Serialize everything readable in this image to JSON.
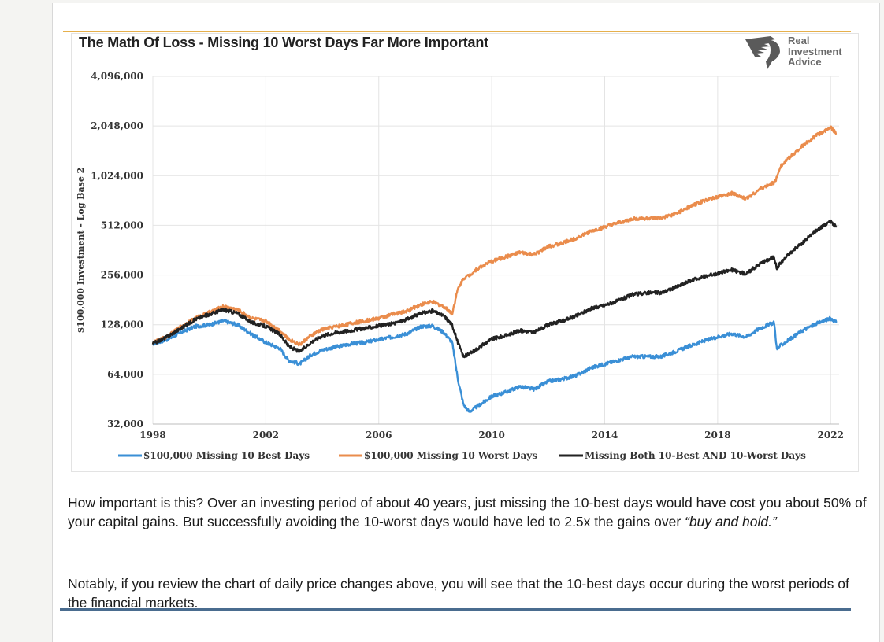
{
  "chart_title": "The Math Of Loss - Missing 10 Worst Days Far More Important",
  "logo": {
    "line1": "Real",
    "line2": "Investment",
    "line3": "Advice"
  },
  "paragraph1": {
    "text": "How important is this? Over an investing period of about 40 years, just missing the 10-best days would have cost you about 50% of your capital gains. But successfully avoiding the 10-worst days would have led to 2.5x the gains over ",
    "emphasis": "“buy and hold.”"
  },
  "paragraph2": "Notably, if you review the chart of daily price changes above, you will see that the 10-best days occur during the worst periods of the financial markets.",
  "colors": {
    "best": "#3a8fd6",
    "worst": "#ea8c4c",
    "both": "#222222",
    "accent_rule": "#e6b04c",
    "bottom_rule": "#4a6c8f"
  },
  "chart_data": {
    "type": "line",
    "title": "The Math Of Loss - Missing 10 Worst Days Far More Important",
    "xlabel": "",
    "ylabel": "$100,000 Investment - Log Base 2",
    "y_scale": "log2",
    "ylim": [
      32000,
      4096000
    ],
    "xlim": [
      1998,
      2022.3
    ],
    "y_ticks": [
      32000,
      64000,
      128000,
      256000,
      512000,
      1024000,
      2048000,
      4096000
    ],
    "y_tick_labels": [
      "32,000",
      "64,000",
      "128,000",
      "256,000",
      "512,000",
      "1,024,000",
      "2,048,000",
      "4,096,000"
    ],
    "x_ticks": [
      1998,
      2002,
      2006,
      2010,
      2014,
      2018,
      2022
    ],
    "x_tick_labels": [
      "1998",
      "2002",
      "2006",
      "2010",
      "2014",
      "2018",
      "2022"
    ],
    "grid": true,
    "legend_position": "bottom",
    "series": [
      {
        "name": "$100,000 Missing 10 Best Days",
        "color": "#3a8fd6",
        "x": [
          1998.0,
          1998.5,
          1999.0,
          1999.5,
          2000.0,
          2000.5,
          2001.0,
          2001.5,
          2002.0,
          2002.5,
          2002.8,
          2003.2,
          2003.6,
          2004.0,
          2004.5,
          2005.0,
          2005.5,
          2006.0,
          2006.5,
          2007.0,
          2007.5,
          2007.9,
          2008.3,
          2008.6,
          2008.8,
          2009.0,
          2009.2,
          2009.5,
          2010.0,
          2010.5,
          2011.0,
          2011.5,
          2012.0,
          2012.5,
          2013.0,
          2013.5,
          2014.0,
          2014.5,
          2015.0,
          2015.5,
          2016.0,
          2016.5,
          2017.0,
          2017.5,
          2018.0,
          2018.5,
          2019.0,
          2019.5,
          2020.0,
          2020.1,
          2020.2,
          2020.5,
          2021.0,
          2021.5,
          2022.0,
          2022.2
        ],
        "y": [
          98000,
          104000,
          115000,
          125000,
          128000,
          135000,
          128000,
          112000,
          100000,
          92000,
          78000,
          74000,
          84000,
          90000,
          94000,
          98000,
          100000,
          104000,
          108000,
          113000,
          125000,
          126000,
          115000,
          100000,
          60000,
          42000,
          38000,
          41000,
          47000,
          50000,
          54000,
          52000,
          58000,
          60000,
          63000,
          70000,
          74000,
          78000,
          82000,
          82000,
          82000,
          88000,
          95000,
          102000,
          108000,
          113000,
          108000,
          122000,
          132000,
          90000,
          95000,
          103000,
          118000,
          130000,
          140000,
          132000
        ]
      },
      {
        "name": "$100,000 Missing 10 Worst Days",
        "color": "#ea8c4c",
        "x": [
          1998.0,
          1998.5,
          1999.0,
          1999.5,
          2000.0,
          2000.5,
          2001.0,
          2001.5,
          2002.0,
          2002.5,
          2002.8,
          2003.2,
          2003.6,
          2004.0,
          2004.5,
          2005.0,
          2005.5,
          2006.0,
          2006.5,
          2007.0,
          2007.5,
          2007.9,
          2008.3,
          2008.6,
          2008.8,
          2009.0,
          2009.2,
          2009.5,
          2010.0,
          2010.5,
          2011.0,
          2011.5,
          2012.0,
          2012.5,
          2013.0,
          2013.5,
          2014.0,
          2014.5,
          2015.0,
          2015.5,
          2016.0,
          2016.5,
          2017.0,
          2017.5,
          2018.0,
          2018.5,
          2019.0,
          2019.5,
          2020.0,
          2020.1,
          2020.2,
          2020.5,
          2021.0,
          2021.5,
          2022.0,
          2022.2
        ],
        "y": [
          100000,
          108000,
          125000,
          140000,
          152000,
          165000,
          158000,
          140000,
          135000,
          118000,
          105000,
          97000,
          110000,
          120000,
          125000,
          130000,
          135000,
          140000,
          148000,
          155000,
          170000,
          176000,
          165000,
          150000,
          210000,
          245000,
          255000,
          280000,
          310000,
          330000,
          350000,
          340000,
          380000,
          400000,
          430000,
          470000,
          500000,
          530000,
          560000,
          565000,
          565000,
          600000,
          660000,
          720000,
          760000,
          800000,
          740000,
          850000,
          930000,
          1000000,
          1150000,
          1300000,
          1550000,
          1800000,
          2000000,
          1850000
        ]
      },
      {
        "name": "Missing Both 10-Best AND 10-Worst Days",
        "color": "#222222",
        "x": [
          1998.0,
          1998.5,
          1999.0,
          1999.5,
          2000.0,
          2000.5,
          2001.0,
          2001.5,
          2002.0,
          2002.5,
          2002.8,
          2003.2,
          2003.6,
          2004.0,
          2004.5,
          2005.0,
          2005.5,
          2006.0,
          2006.5,
          2007.0,
          2007.5,
          2007.9,
          2008.3,
          2008.6,
          2008.8,
          2009.0,
          2009.2,
          2009.5,
          2010.0,
          2010.5,
          2011.0,
          2011.5,
          2012.0,
          2012.5,
          2013.0,
          2013.5,
          2014.0,
          2014.5,
          2015.0,
          2015.5,
          2016.0,
          2016.5,
          2017.0,
          2017.5,
          2018.0,
          2018.5,
          2019.0,
          2019.5,
          2020.0,
          2020.1,
          2020.2,
          2020.5,
          2021.0,
          2021.5,
          2022.0,
          2022.2
        ],
        "y": [
          98000,
          108000,
          122000,
          138000,
          148000,
          158000,
          150000,
          132000,
          125000,
          112000,
          95000,
          88000,
          100000,
          110000,
          115000,
          118000,
          122000,
          126000,
          130000,
          138000,
          150000,
          155000,
          145000,
          128000,
          100000,
          82000,
          85000,
          92000,
          105000,
          110000,
          118000,
          115000,
          128000,
          135000,
          145000,
          160000,
          168000,
          180000,
          195000,
          200000,
          200000,
          215000,
          235000,
          250000,
          262000,
          275000,
          260000,
          300000,
          330000,
          280000,
          300000,
          340000,
          400000,
          480000,
          540000,
          500000
        ]
      }
    ]
  }
}
